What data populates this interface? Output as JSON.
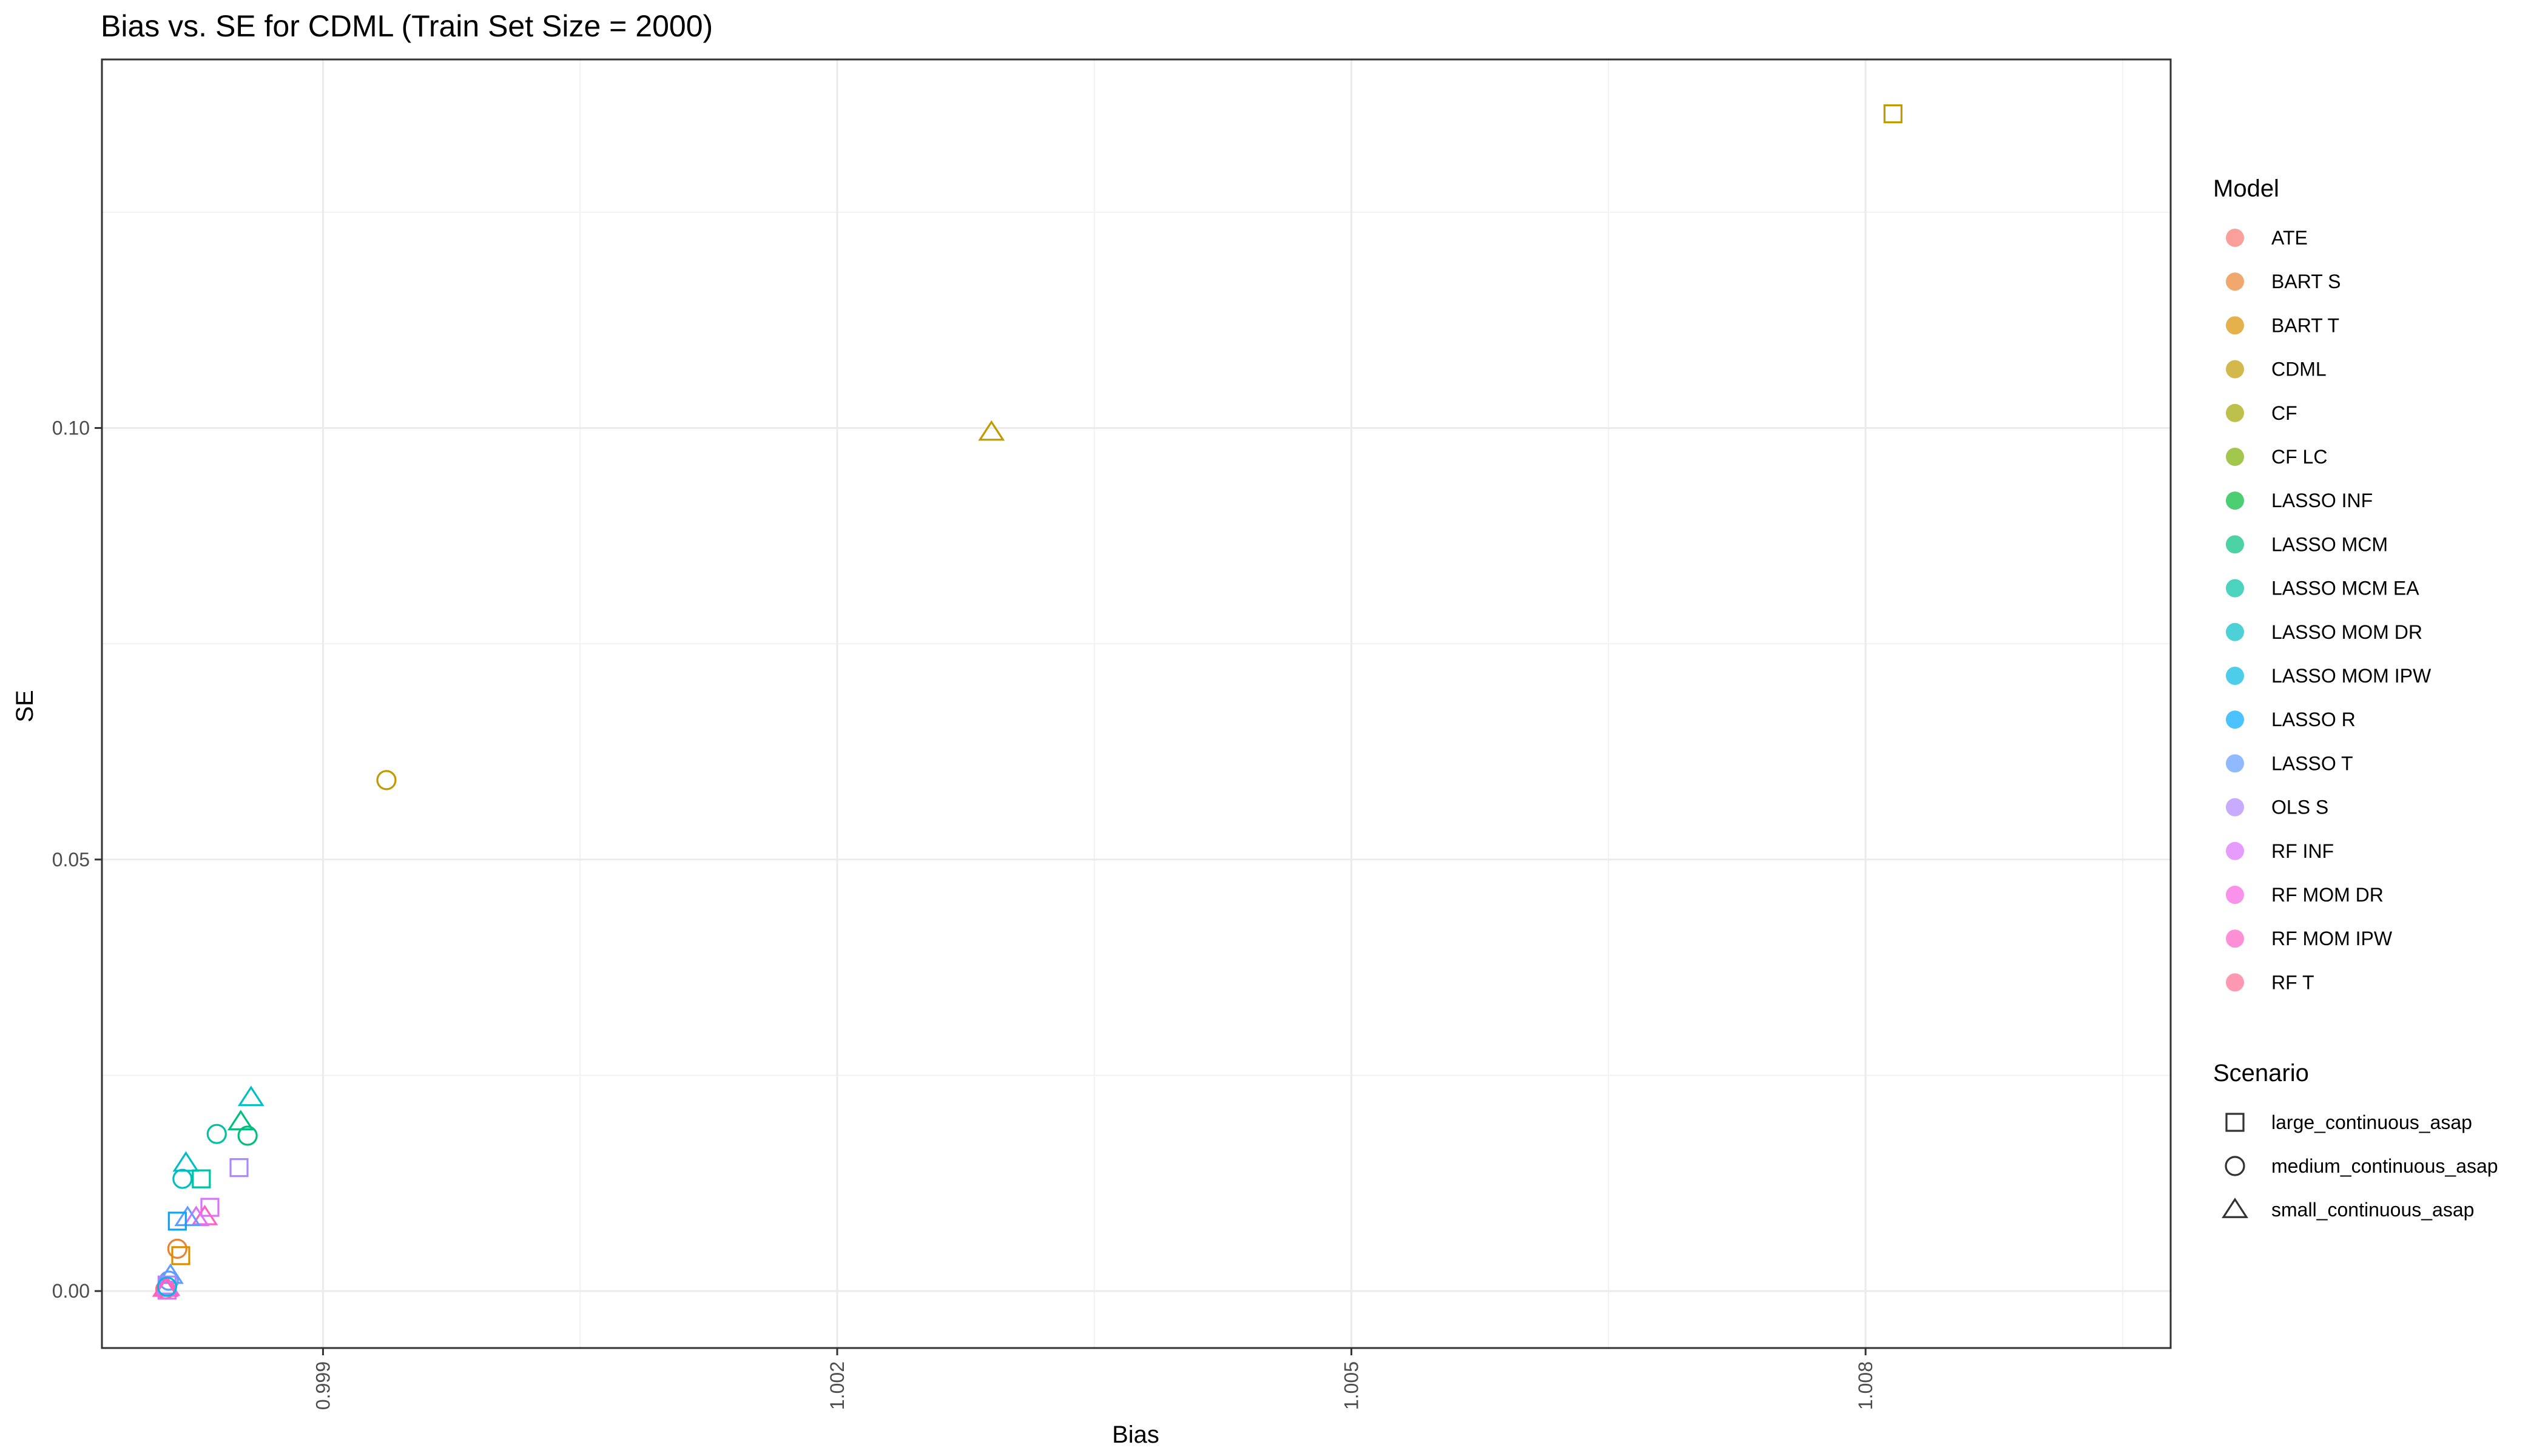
{
  "chart_data": {
    "type": "scatter",
    "title": "Bias vs. SE for CDML (Train Set Size = 2000)",
    "xlabel": "Bias",
    "ylabel": "SE",
    "xlim": [
      0.99771,
      1.00978
    ],
    "ylim": [
      -0.0066,
      0.1427
    ],
    "x_ticks": [
      0.999,
      1.002,
      1.005,
      1.008
    ],
    "x_tick_labels": [
      "0.999",
      "1.002",
      "1.005",
      "1.008"
    ],
    "y_ticks": [
      0.0,
      0.05,
      0.1
    ],
    "y_tick_labels": [
      "0.00",
      "0.05",
      "0.10"
    ],
    "grid": true,
    "legend_position": "right",
    "color_legend": {
      "title": "Model",
      "items": [
        {
          "name": "ATE",
          "color": "#F8766D"
        },
        {
          "name": "BART S",
          "color": "#EA8331"
        },
        {
          "name": "BART T",
          "color": "#D89000"
        },
        {
          "name": "CDML",
          "color": "#C09B00"
        },
        {
          "name": "CF",
          "color": "#A3A500"
        },
        {
          "name": "CF LC",
          "color": "#7CAE00"
        },
        {
          "name": "LASSO INF",
          "color": "#00BA38"
        },
        {
          "name": "LASSO MCM",
          "color": "#00BF7D"
        },
        {
          "name": "LASSO MCM EA",
          "color": "#00C1A3"
        },
        {
          "name": "LASSO MOM DR",
          "color": "#00BFC4"
        },
        {
          "name": "LASSO MOM IPW",
          "color": "#00B9E3"
        },
        {
          "name": "LASSO R",
          "color": "#00A9FF"
        },
        {
          "name": "LASSO T",
          "color": "#619CFF"
        },
        {
          "name": "OLS S",
          "color": "#AE87FF"
        },
        {
          "name": "RF INF",
          "color": "#DB72FB"
        },
        {
          "name": "RF MOM DR",
          "color": "#F564E3"
        },
        {
          "name": "RF MOM IPW",
          "color": "#FF61C3"
        },
        {
          "name": "RF T",
          "color": "#FF6C91"
        }
      ]
    },
    "shape_legend": {
      "title": "Scenario",
      "items": [
        {
          "name": "large_continuous_asap",
          "shape": "square"
        },
        {
          "name": "medium_continuous_asap",
          "shape": "circle"
        },
        {
          "name": "small_continuous_asap",
          "shape": "triangle"
        }
      ]
    },
    "points": [
      {
        "x": 1.00816,
        "y": 0.1364,
        "model": "CDML",
        "scenario": "large_continuous_asap"
      },
      {
        "x": 1.0029,
        "y": 0.0995,
        "model": "CDML",
        "scenario": "small_continuous_asap"
      },
      {
        "x": 0.99937,
        "y": 0.0592,
        "model": "CDML",
        "scenario": "medium_continuous_asap"
      },
      {
        "x": 0.99858,
        "y": 0.0224,
        "model": "LASSO MOM DR",
        "scenario": "small_continuous_asap"
      },
      {
        "x": 0.99852,
        "y": 0.0196,
        "model": "LASSO MCM",
        "scenario": "small_continuous_asap"
      },
      {
        "x": 0.99856,
        "y": 0.018,
        "model": "LASSO MCM",
        "scenario": "medium_continuous_asap"
      },
      {
        "x": 0.99838,
        "y": 0.0182,
        "model": "LASSO MCM EA",
        "scenario": "medium_continuous_asap"
      },
      {
        "x": 0.9982,
        "y": 0.0148,
        "model": "LASSO MOM DR",
        "scenario": "small_continuous_asap"
      },
      {
        "x": 0.99818,
        "y": 0.013,
        "model": "LASSO MOM DR",
        "scenario": "medium_continuous_asap"
      },
      {
        "x": 0.99829,
        "y": 0.013,
        "model": "LASSO MCM EA",
        "scenario": "large_continuous_asap"
      },
      {
        "x": 0.99851,
        "y": 0.0143,
        "model": "OLS S",
        "scenario": "large_continuous_asap"
      },
      {
        "x": 0.99834,
        "y": 0.0097,
        "model": "RF INF",
        "scenario": "large_continuous_asap"
      },
      {
        "x": 0.99831,
        "y": 0.0086,
        "model": "RF MOM IPW",
        "scenario": "small_continuous_asap"
      },
      {
        "x": 0.99826,
        "y": 0.0085,
        "model": "RF INF",
        "scenario": "small_continuous_asap"
      },
      {
        "x": 0.99821,
        "y": 0.0085,
        "model": "LASSO T",
        "scenario": "small_continuous_asap"
      },
      {
        "x": 0.99815,
        "y": 0.0081,
        "model": "LASSO R",
        "scenario": "large_continuous_asap"
      },
      {
        "x": 0.99815,
        "y": 0.0049,
        "model": "BART S",
        "scenario": "medium_continuous_asap"
      },
      {
        "x": 0.99817,
        "y": 0.0041,
        "model": "BART T",
        "scenario": "large_continuous_asap"
      },
      {
        "x": 0.99811,
        "y": 0.0018,
        "model": "LASSO T",
        "scenario": "small_continuous_asap"
      },
      {
        "x": 0.9981,
        "y": 0.0012,
        "model": "LASSO T",
        "scenario": "medium_continuous_asap"
      },
      {
        "x": 0.99809,
        "y": 0.0007,
        "model": "OLS S",
        "scenario": "large_continuous_asap"
      },
      {
        "x": 0.99809,
        "y": 0.0004,
        "model": "RF MOM DR",
        "scenario": "small_continuous_asap"
      },
      {
        "x": 0.99808,
        "y": 0.0002,
        "model": "RF T",
        "scenario": "medium_continuous_asap"
      },
      {
        "x": 0.99809,
        "y": 0.0001,
        "model": "RF INF",
        "scenario": "large_continuous_asap"
      },
      {
        "x": 0.99808,
        "y": 0.0003,
        "model": "RF MOM IPW",
        "scenario": "small_continuous_asap"
      },
      {
        "x": 0.99809,
        "y": 0.0005,
        "model": "LASSO MOM IPW",
        "scenario": "medium_continuous_asap"
      }
    ]
  }
}
